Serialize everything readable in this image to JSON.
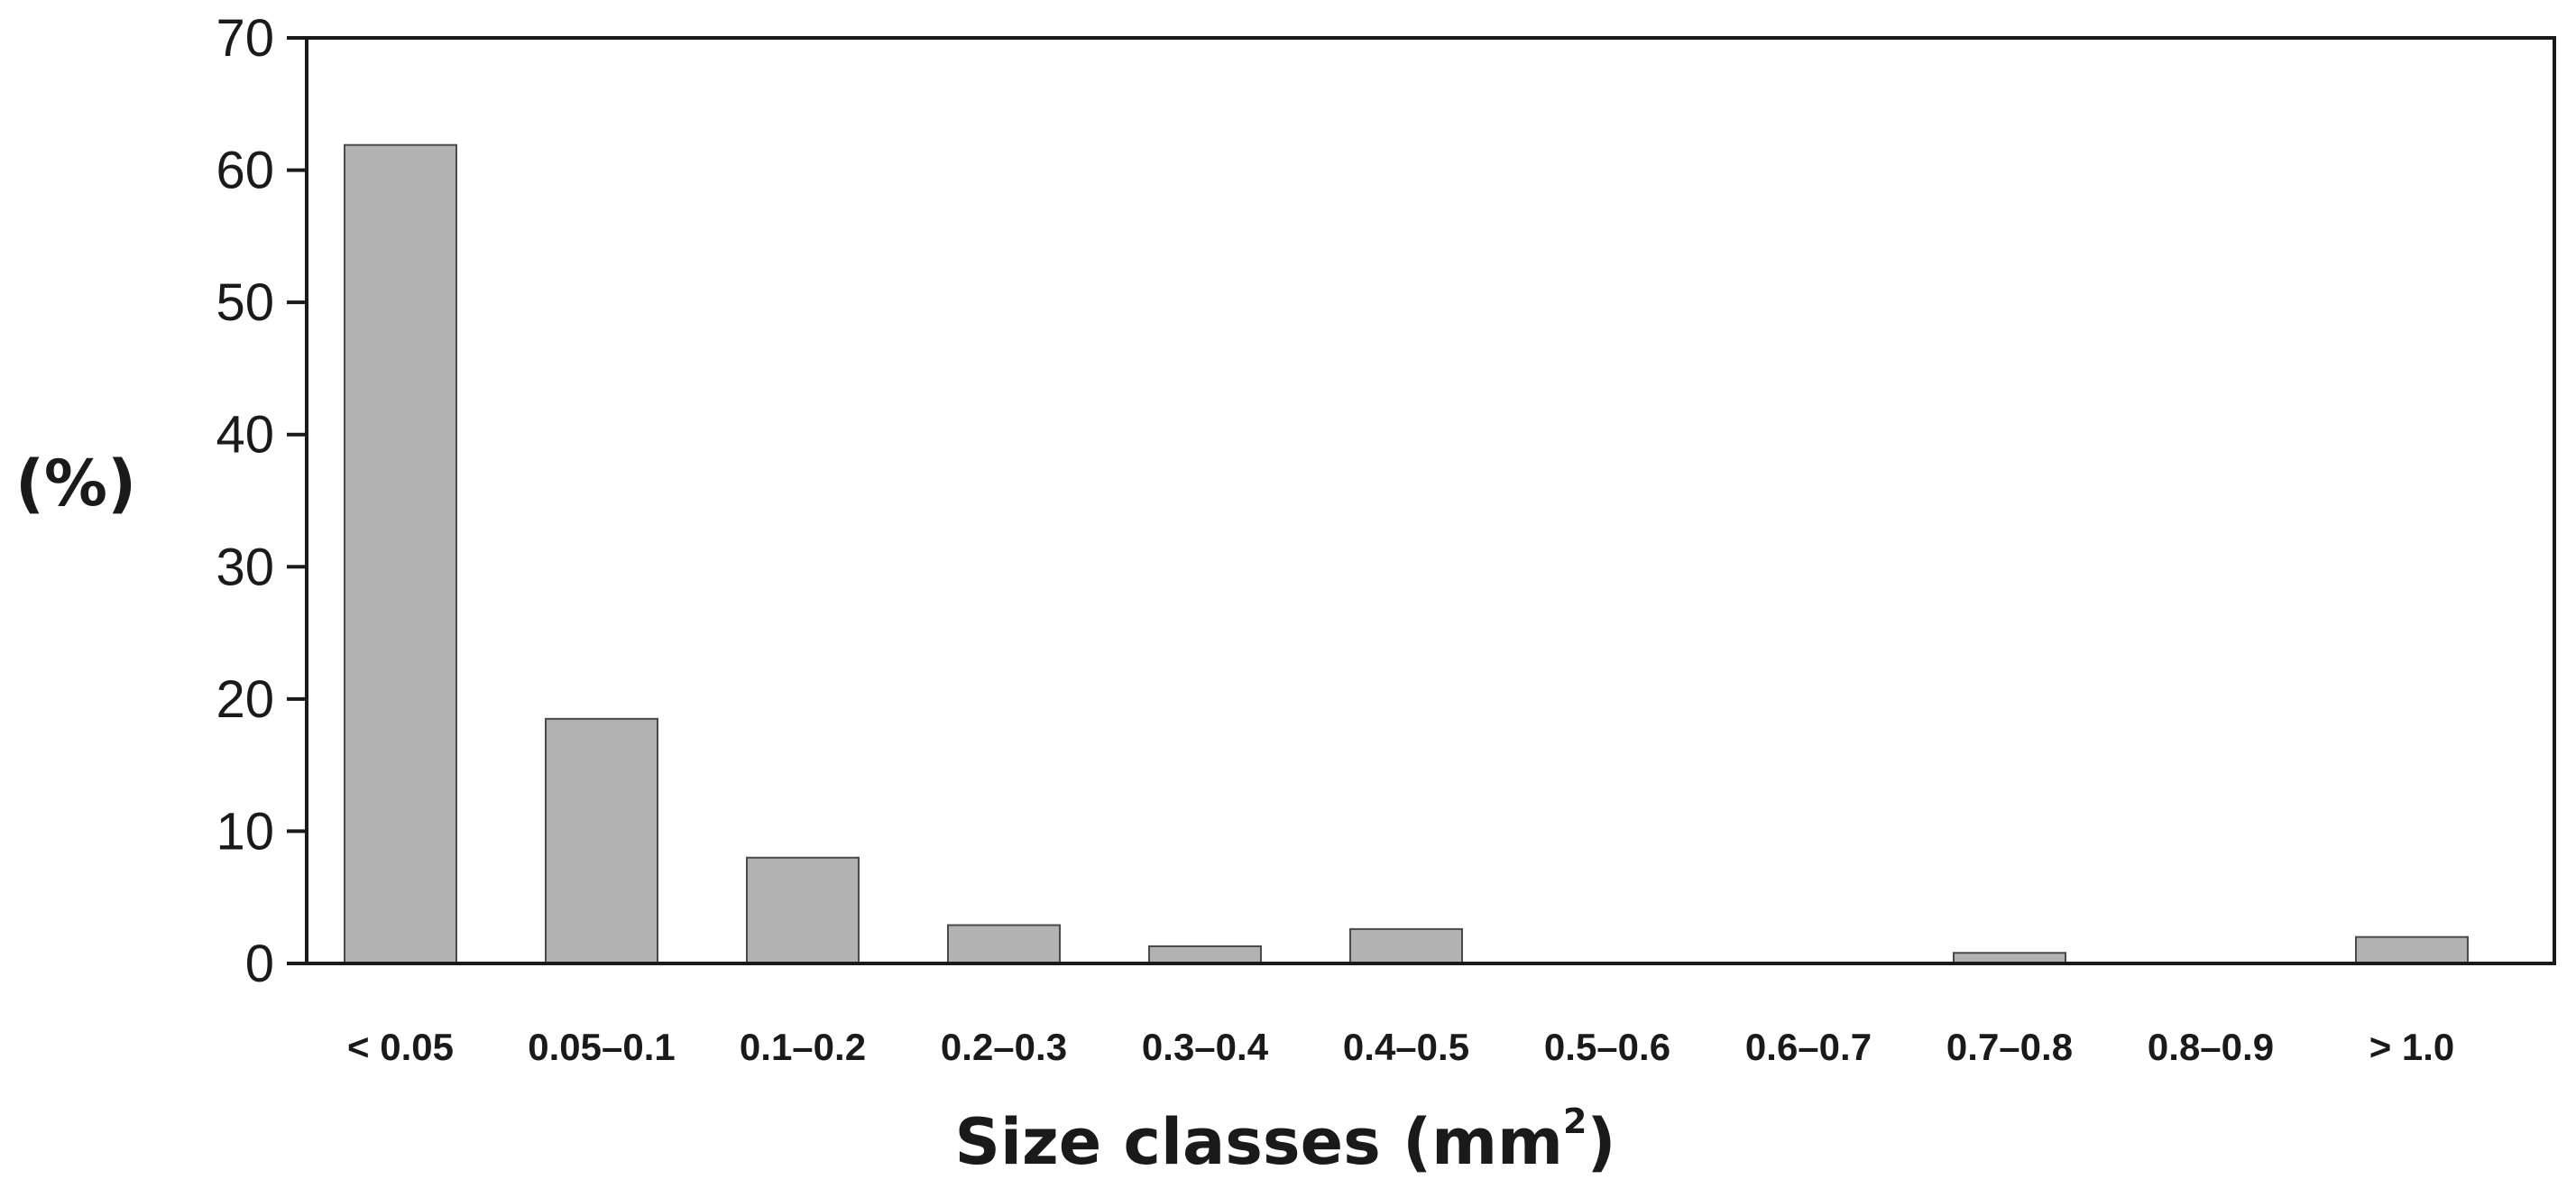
{
  "chart_data": {
    "type": "bar",
    "categories": [
      "< 0.05",
      "0.05–0.1",
      "0.1–0.2",
      "0.2–0.3",
      "0.3–0.4",
      "0.4–0.5",
      "0.5–0.6",
      "0.6–0.7",
      "0.7–0.8",
      "0.8–0.9",
      "> 1.0"
    ],
    "values": [
      61.9,
      18.5,
      8.0,
      2.9,
      1.3,
      2.6,
      0,
      0,
      0.8,
      0,
      2.0
    ],
    "xlabel": "Size classes (mm",
    "xlabel_superscript": "2",
    "xlabel_suffix": ")",
    "ylabel": "(%)",
    "ylim": [
      0,
      70
    ],
    "yticks": [
      "0",
      "10",
      "20",
      "30",
      "40",
      "50",
      "60",
      "70"
    ],
    "grid": false,
    "bar_color": "#b2b2b2",
    "bar_edge_color": "#4a4a4a"
  }
}
